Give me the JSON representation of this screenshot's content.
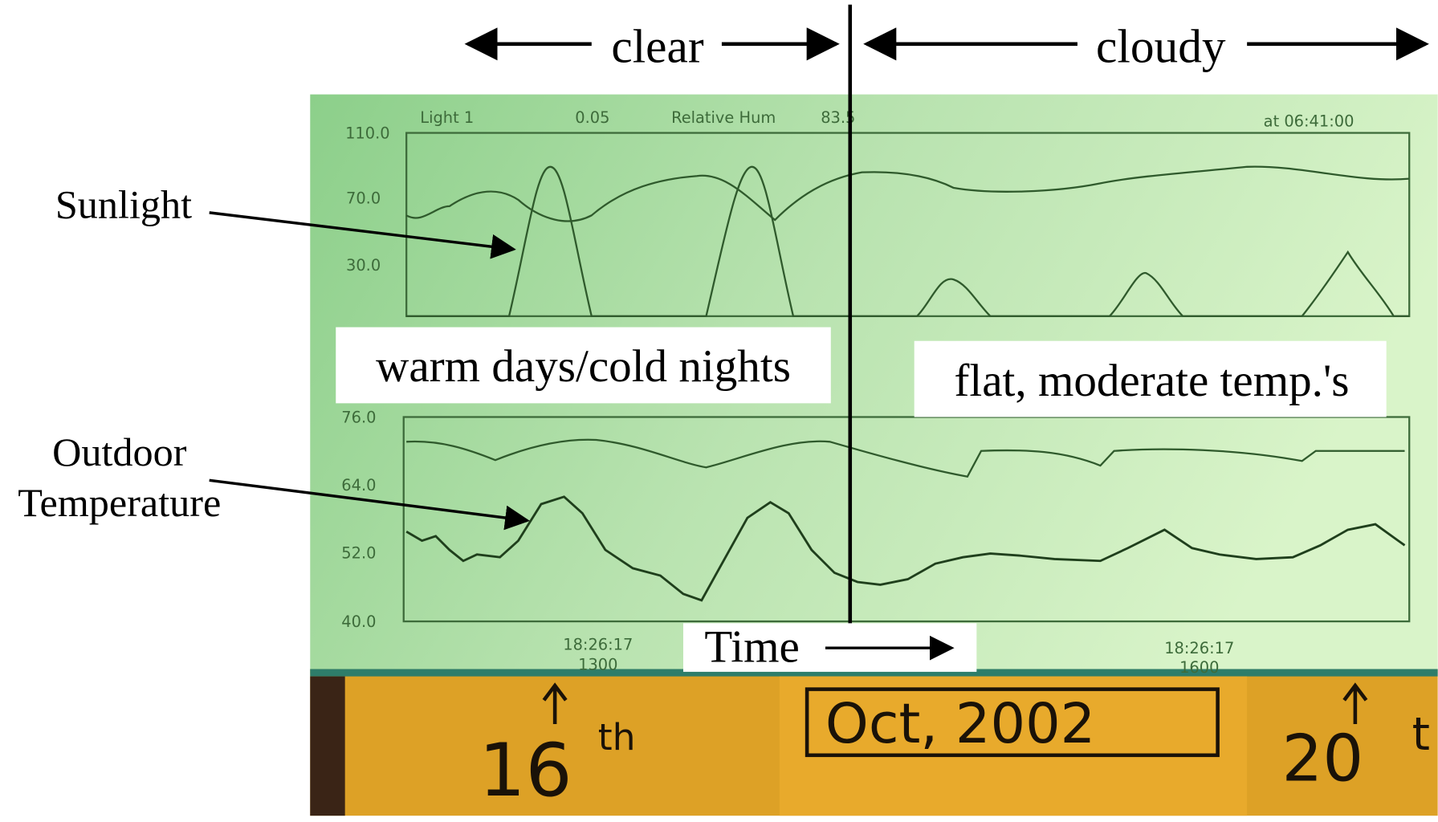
{
  "annotations": {
    "clear": "clear",
    "cloudy": "cloudy",
    "sunlight": "Sunlight",
    "outdoor_temperature": [
      "Outdoor",
      "Temperature"
    ],
    "warm_days": "warm days/cold nights",
    "flat": "flat, moderate temp.'s",
    "time": "Time"
  },
  "screen": {
    "header": {
      "channel": "Light 1",
      "channel_value": "0.05",
      "second_channel": "Relative Hum",
      "second_value": "83.5",
      "timestamp": "at 06:41:00"
    },
    "top_yticks": [
      "110.0",
      "70.0",
      "30.0"
    ],
    "bottom_yticks": [
      "76.0",
      "64.0",
      "52.0",
      "40.0"
    ],
    "xlabels": [
      {
        "time": "18:26:17",
        "day": "1300"
      },
      {
        "time": "18:26:17",
        "day": "1600"
      }
    ]
  },
  "handwriting": {
    "first_day": "16",
    "first_suffix": "th",
    "date": "Oct, 2002",
    "last_day": "20",
    "last_suffix": "t"
  }
}
